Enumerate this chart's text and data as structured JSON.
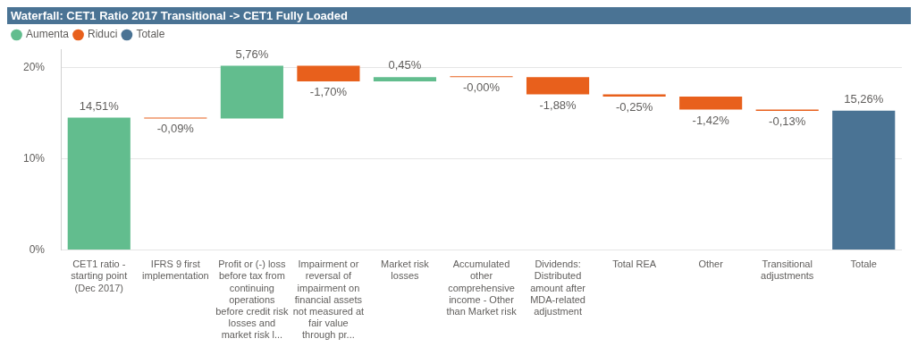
{
  "chart_data": {
    "type": "bar",
    "title": "Waterfall: CET1 Ratio 2017 Transitional -> CET1 Fully Loaded",
    "categories": [
      "CET1 ratio - starting point (Dec 2017)",
      "IFRS 9 first implementation",
      "Profit or (-) loss before tax from continuing operations before credit risk losses and market risk l...",
      "Impairment or reversal of impairment on financial assets not measured at fair value through pr...",
      "Market risk losses",
      "Accumulated other comprehensive income - Other than Market risk",
      "Dividends: Distributed amount after MDA-related adjustment",
      "Total REA",
      "Other",
      "Transitional adjustments",
      "Totale"
    ],
    "series": [
      {
        "name": "Aumenta",
        "color": "#62bd8e",
        "base": [
          0,
          null,
          14.42,
          null,
          18.48,
          null,
          null,
          null,
          null,
          null,
          null
        ],
        "values": [
          14.51,
          null,
          5.76,
          null,
          0.45,
          null,
          null,
          null,
          null,
          null,
          null
        ],
        "value_labels": [
          "14,51%",
          null,
          "5,76%",
          null,
          "0,45%",
          null,
          null,
          null,
          null,
          null,
          null
        ]
      },
      {
        "name": "Riduci",
        "color": "#e8601c",
        "base": [
          null,
          14.51,
          null,
          20.18,
          null,
          18.93,
          18.93,
          17.05,
          16.8,
          15.38,
          null
        ],
        "values": [
          null,
          -0.09,
          null,
          -1.7,
          null,
          -0.0,
          -1.88,
          -0.25,
          -1.42,
          -0.13,
          null
        ],
        "value_labels": [
          null,
          "-0,09%",
          null,
          "-1,70%",
          null,
          "-0,00%",
          "-1,88%",
          "-0,25%",
          "-1,42%",
          "-0,13%",
          null
        ]
      },
      {
        "name": "Totale",
        "color": "#4a7394",
        "base": [
          null,
          null,
          null,
          null,
          null,
          null,
          null,
          null,
          null,
          null,
          0
        ],
        "values": [
          null,
          null,
          null,
          null,
          null,
          null,
          null,
          null,
          null,
          null,
          15.26
        ],
        "value_labels": [
          null,
          null,
          null,
          null,
          null,
          null,
          null,
          null,
          null,
          null,
          "15,26%"
        ]
      }
    ],
    "ylim": [
      0,
      22
    ],
    "yticks": [
      {
        "value": 0,
        "label": "0%"
      },
      {
        "value": 10,
        "label": "10%"
      },
      {
        "value": 20,
        "label": "20%"
      }
    ],
    "grid": "y",
    "legend": "top left"
  }
}
